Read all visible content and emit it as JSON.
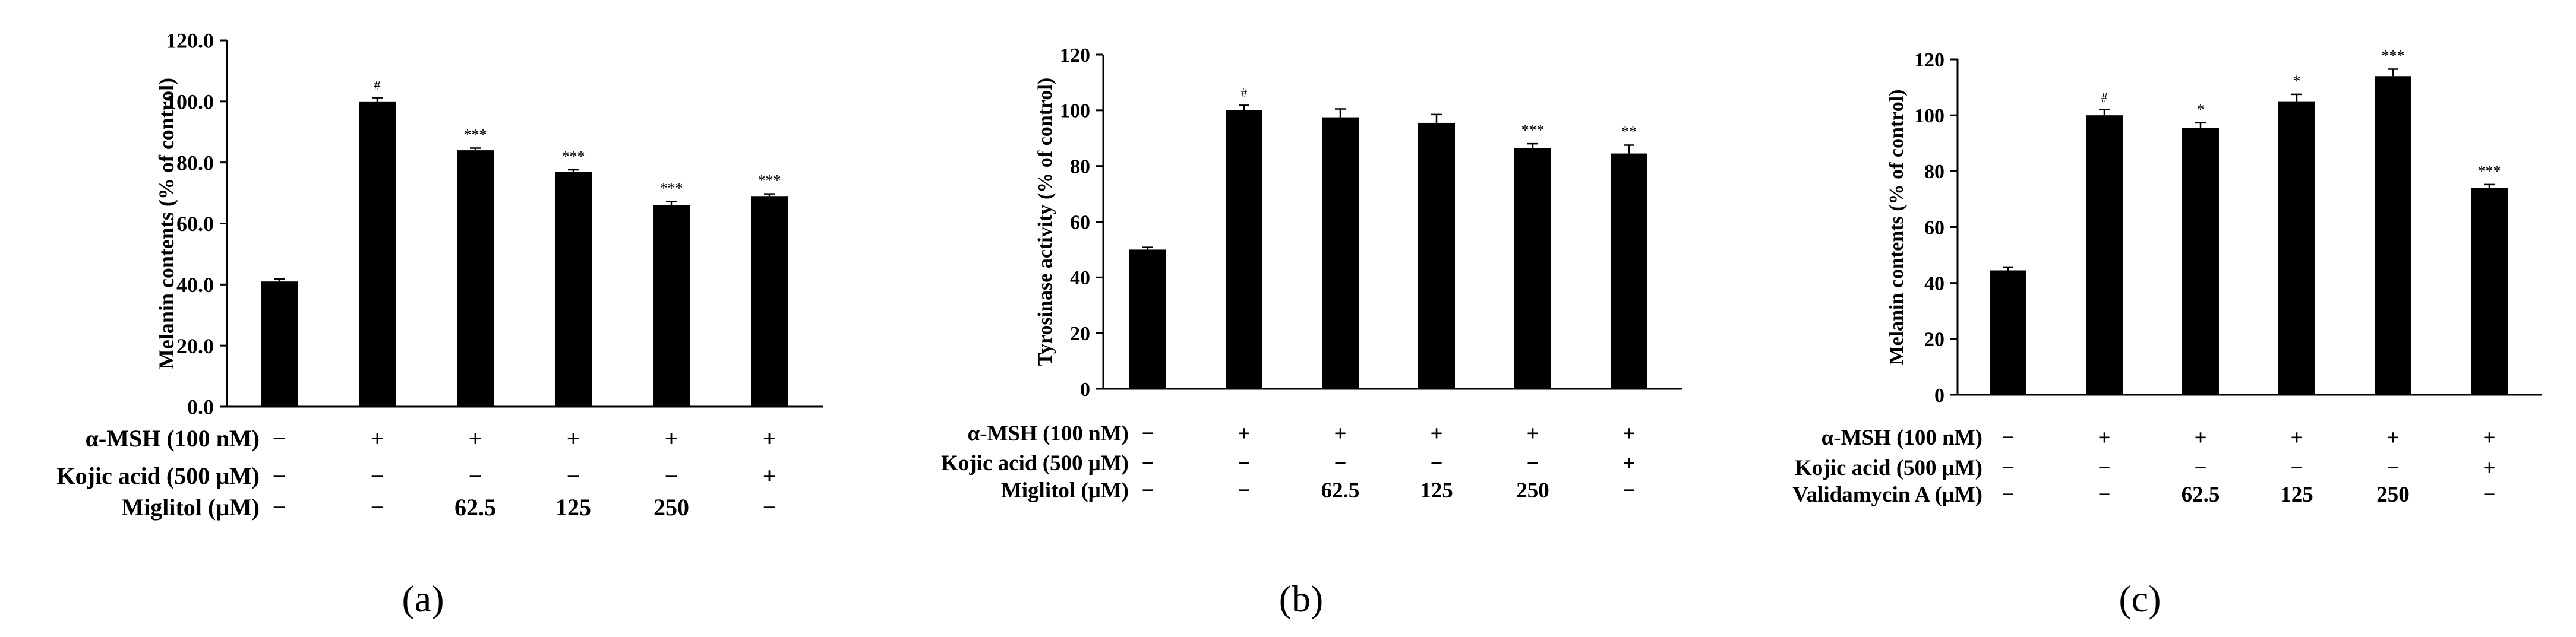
{
  "chart_data": [
    {
      "type": "bar",
      "panel_label": "(a)",
      "ylabel": "Melanin contents (% of control)",
      "ylim": [
        0,
        120
      ],
      "yticks": [
        "0.0",
        "20.0",
        "40.0",
        "60.0",
        "80.0",
        "100.0",
        "120.0"
      ],
      "values": [
        41,
        100,
        84,
        77,
        66,
        69
      ],
      "errors": [
        0.8,
        1.2,
        0.7,
        0.6,
        1.2,
        0.7
      ],
      "significance": [
        "",
        "#",
        "***",
        "***",
        "***",
        "***"
      ],
      "treatments": [
        {
          "label": "α-MSH (100 nM)",
          "values": [
            "−",
            "+",
            "+",
            "+",
            "+",
            "+"
          ]
        },
        {
          "label": "Kojic acid (500 μM)",
          "values": [
            "−",
            "−",
            "−",
            "−",
            "−",
            "+"
          ]
        },
        {
          "label": "Miglitol (μM)",
          "values": [
            "−",
            "−",
            "62.5",
            "125",
            "250",
            "−"
          ]
        }
      ],
      "bar_color": "#000000"
    },
    {
      "type": "bar",
      "panel_label": "(b)",
      "ylabel": "Tyrosinase activity (% of control)",
      "ylim": [
        0,
        120
      ],
      "yticks": [
        "0",
        "20",
        "40",
        "60",
        "80",
        "100",
        "120"
      ],
      "values": [
        50,
        100,
        97.5,
        95.5,
        86.5,
        84.5
      ],
      "errors": [
        0.8,
        1.8,
        3,
        3,
        1.5,
        3
      ],
      "significance": [
        "",
        "#",
        "",
        "",
        "***",
        "**"
      ],
      "treatments": [
        {
          "label": "α-MSH (100 nM)",
          "values": [
            "−",
            "+",
            "+",
            "+",
            "+",
            "+"
          ]
        },
        {
          "label": "Kojic acid (500 μM)",
          "values": [
            "−",
            "−",
            "−",
            "−",
            "−",
            "+"
          ]
        },
        {
          "label": "Miglitol (μM)",
          "values": [
            "−",
            "−",
            "62.5",
            "125",
            "250",
            "−"
          ]
        }
      ],
      "bar_color": "#000000"
    },
    {
      "type": "bar",
      "panel_label": "(c)",
      "ylabel": "Melanin contents (% of control)",
      "ylim": [
        0,
        120
      ],
      "yticks": [
        "0",
        "20",
        "40",
        "60",
        "80",
        "100",
        "120"
      ],
      "values": [
        44.5,
        100,
        95.5,
        105,
        114,
        74
      ],
      "errors": [
        1.2,
        2,
        1.8,
        2.5,
        2.5,
        1.2
      ],
      "significance": [
        "",
        "#",
        "*",
        "*",
        "***",
        "***"
      ],
      "treatments": [
        {
          "label": "α-MSH (100 nM)",
          "values": [
            "−",
            "+",
            "+",
            "+",
            "+",
            "+"
          ]
        },
        {
          "label": "Kojic acid (500 μM)",
          "values": [
            "−",
            "−",
            "−",
            "−",
            "−",
            "+"
          ]
        },
        {
          "label": "Validamycin A (μM)",
          "values": [
            "−",
            "−",
            "62.5",
            "125",
            "250",
            "−"
          ]
        }
      ],
      "bar_color": "#000000"
    }
  ]
}
